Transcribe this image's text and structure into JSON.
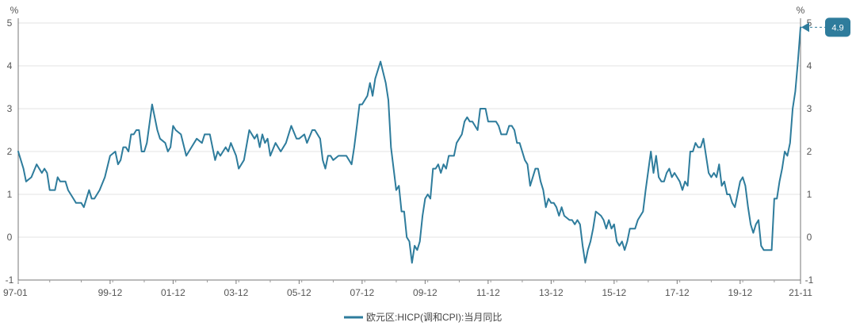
{
  "chart_data": {
    "type": "line",
    "y_unit_left": "%",
    "y_unit_right": "%",
    "ylim": [
      -1,
      5
    ],
    "y_ticks": [
      -1,
      0,
      1,
      2,
      3,
      4,
      5
    ],
    "y_tick_labels": [
      "-1",
      "0",
      "1",
      "2",
      "3",
      "4",
      "5"
    ],
    "x_tick_labels": [
      "97-01",
      "99-12",
      "01-12",
      "03-12",
      "05-12",
      "07-12",
      "09-12",
      "11-12",
      "13-12",
      "15-12",
      "17-12",
      "19-12",
      "21-11"
    ],
    "grid": "horizontal",
    "legend_position": "bottom",
    "colors": {
      "series": "#2E7C9C",
      "callout": "#2E7C9C"
    },
    "callout": {
      "label": "4.9",
      "value": 4.9
    },
    "series": [
      {
        "name": "欧元区:HICP(调和CPI):当月同比",
        "points": [
          [
            "1997-01",
            2.0
          ],
          [
            "1997-03",
            1.6
          ],
          [
            "1997-04",
            1.3
          ],
          [
            "1997-06",
            1.4
          ],
          [
            "1997-08",
            1.7
          ],
          [
            "1997-10",
            1.5
          ],
          [
            "1997-11",
            1.6
          ],
          [
            "1997-12",
            1.5
          ],
          [
            "1998-01",
            1.1
          ],
          [
            "1998-03",
            1.1
          ],
          [
            "1998-04",
            1.4
          ],
          [
            "1998-05",
            1.3
          ],
          [
            "1998-07",
            1.3
          ],
          [
            "1998-08",
            1.1
          ],
          [
            "1998-10",
            0.9
          ],
          [
            "1998-11",
            0.8
          ],
          [
            "1998-12",
            0.8
          ],
          [
            "1999-01",
            0.8
          ],
          [
            "1999-02",
            0.7
          ],
          [
            "1999-04",
            1.1
          ],
          [
            "1999-05",
            0.9
          ],
          [
            "1999-06",
            0.9
          ],
          [
            "1999-08",
            1.1
          ],
          [
            "1999-10",
            1.4
          ],
          [
            "1999-12",
            1.9
          ],
          [
            "2000-02",
            2.0
          ],
          [
            "2000-03",
            1.7
          ],
          [
            "2000-04",
            1.8
          ],
          [
            "2000-05",
            2.1
          ],
          [
            "2000-06",
            2.1
          ],
          [
            "2000-07",
            2.0
          ],
          [
            "2000-08",
            2.4
          ],
          [
            "2000-09",
            2.4
          ],
          [
            "2000-10",
            2.5
          ],
          [
            "2000-11",
            2.5
          ],
          [
            "2000-12",
            2.0
          ],
          [
            "2001-01",
            2.0
          ],
          [
            "2001-02",
            2.2
          ],
          [
            "2001-04",
            3.1
          ],
          [
            "2001-05",
            2.8
          ],
          [
            "2001-06",
            2.5
          ],
          [
            "2001-07",
            2.3
          ],
          [
            "2001-09",
            2.2
          ],
          [
            "2001-10",
            2.0
          ],
          [
            "2001-11",
            2.1
          ],
          [
            "2001-12",
            2.6
          ],
          [
            "2002-01",
            2.5
          ],
          [
            "2002-03",
            2.4
          ],
          [
            "2002-05",
            1.9
          ],
          [
            "2002-07",
            2.1
          ],
          [
            "2002-09",
            2.3
          ],
          [
            "2002-11",
            2.2
          ],
          [
            "2002-12",
            2.4
          ],
          [
            "2003-02",
            2.4
          ],
          [
            "2003-03",
            2.1
          ],
          [
            "2003-04",
            1.8
          ],
          [
            "2003-05",
            2.0
          ],
          [
            "2003-06",
            1.9
          ],
          [
            "2003-08",
            2.1
          ],
          [
            "2003-09",
            2.0
          ],
          [
            "2003-10",
            2.2
          ],
          [
            "2003-12",
            1.9
          ],
          [
            "2004-01",
            1.6
          ],
          [
            "2004-03",
            1.8
          ],
          [
            "2004-05",
            2.5
          ],
          [
            "2004-07",
            2.3
          ],
          [
            "2004-08",
            2.4
          ],
          [
            "2004-09",
            2.1
          ],
          [
            "2004-10",
            2.4
          ],
          [
            "2004-11",
            2.2
          ],
          [
            "2004-12",
            2.3
          ],
          [
            "2005-01",
            1.9
          ],
          [
            "2005-03",
            2.2
          ],
          [
            "2005-05",
            2.0
          ],
          [
            "2005-07",
            2.2
          ],
          [
            "2005-09",
            2.6
          ],
          [
            "2005-11",
            2.3
          ],
          [
            "2005-12",
            2.3
          ],
          [
            "2006-02",
            2.4
          ],
          [
            "2006-03",
            2.2
          ],
          [
            "2006-05",
            2.5
          ],
          [
            "2006-06",
            2.5
          ],
          [
            "2006-08",
            2.3
          ],
          [
            "2006-09",
            1.8
          ],
          [
            "2006-10",
            1.6
          ],
          [
            "2006-11",
            1.9
          ],
          [
            "2006-12",
            1.9
          ],
          [
            "2007-01",
            1.8
          ],
          [
            "2007-03",
            1.9
          ],
          [
            "2007-06",
            1.9
          ],
          [
            "2007-08",
            1.7
          ],
          [
            "2007-09",
            2.1
          ],
          [
            "2007-10",
            2.6
          ],
          [
            "2007-11",
            3.1
          ],
          [
            "2007-12",
            3.1
          ],
          [
            "2008-02",
            3.3
          ],
          [
            "2008-03",
            3.6
          ],
          [
            "2008-04",
            3.3
          ],
          [
            "2008-05",
            3.7
          ],
          [
            "2008-07",
            4.1
          ],
          [
            "2008-09",
            3.6
          ],
          [
            "2008-10",
            3.2
          ],
          [
            "2008-11",
            2.1
          ],
          [
            "2008-12",
            1.6
          ],
          [
            "2009-01",
            1.1
          ],
          [
            "2009-02",
            1.2
          ],
          [
            "2009-03",
            0.6
          ],
          [
            "2009-04",
            0.6
          ],
          [
            "2009-05",
            0.0
          ],
          [
            "2009-06",
            -0.1
          ],
          [
            "2009-07",
            -0.6
          ],
          [
            "2009-08",
            -0.2
          ],
          [
            "2009-09",
            -0.3
          ],
          [
            "2009-10",
            -0.1
          ],
          [
            "2009-11",
            0.5
          ],
          [
            "2009-12",
            0.9
          ],
          [
            "2010-01",
            1.0
          ],
          [
            "2010-02",
            0.9
          ],
          [
            "2010-03",
            1.6
          ],
          [
            "2010-04",
            1.6
          ],
          [
            "2010-05",
            1.7
          ],
          [
            "2010-06",
            1.5
          ],
          [
            "2010-07",
            1.7
          ],
          [
            "2010-08",
            1.6
          ],
          [
            "2010-09",
            1.9
          ],
          [
            "2010-11",
            1.9
          ],
          [
            "2010-12",
            2.2
          ],
          [
            "2011-01",
            2.3
          ],
          [
            "2011-02",
            2.4
          ],
          [
            "2011-03",
            2.7
          ],
          [
            "2011-04",
            2.8
          ],
          [
            "2011-05",
            2.7
          ],
          [
            "2011-06",
            2.7
          ],
          [
            "2011-07",
            2.6
          ],
          [
            "2011-08",
            2.5
          ],
          [
            "2011-09",
            3.0
          ],
          [
            "2011-11",
            3.0
          ],
          [
            "2011-12",
            2.7
          ],
          [
            "2012-02",
            2.7
          ],
          [
            "2012-03",
            2.7
          ],
          [
            "2012-04",
            2.6
          ],
          [
            "2012-05",
            2.4
          ],
          [
            "2012-07",
            2.4
          ],
          [
            "2012-08",
            2.6
          ],
          [
            "2012-09",
            2.6
          ],
          [
            "2012-10",
            2.5
          ],
          [
            "2012-11",
            2.2
          ],
          [
            "2012-12",
            2.2
          ],
          [
            "2013-01",
            2.0
          ],
          [
            "2013-02",
            1.8
          ],
          [
            "2013-03",
            1.7
          ],
          [
            "2013-04",
            1.2
          ],
          [
            "2013-05",
            1.4
          ],
          [
            "2013-06",
            1.6
          ],
          [
            "2013-07",
            1.6
          ],
          [
            "2013-08",
            1.3
          ],
          [
            "2013-09",
            1.1
          ],
          [
            "2013-10",
            0.7
          ],
          [
            "2013-11",
            0.9
          ],
          [
            "2013-12",
            0.8
          ],
          [
            "2014-01",
            0.8
          ],
          [
            "2014-02",
            0.7
          ],
          [
            "2014-03",
            0.5
          ],
          [
            "2014-04",
            0.7
          ],
          [
            "2014-05",
            0.5
          ],
          [
            "2014-07",
            0.4
          ],
          [
            "2014-08",
            0.4
          ],
          [
            "2014-09",
            0.3
          ],
          [
            "2014-10",
            0.4
          ],
          [
            "2014-11",
            0.3
          ],
          [
            "2014-12",
            -0.2
          ],
          [
            "2015-01",
            -0.6
          ],
          [
            "2015-02",
            -0.3
          ],
          [
            "2015-03",
            -0.1
          ],
          [
            "2015-04",
            0.2
          ],
          [
            "2015-05",
            0.6
          ],
          [
            "2015-07",
            0.5
          ],
          [
            "2015-08",
            0.4
          ],
          [
            "2015-09",
            0.2
          ],
          [
            "2015-10",
            0.4
          ],
          [
            "2015-11",
            0.2
          ],
          [
            "2015-12",
            0.3
          ],
          [
            "2016-01",
            -0.1
          ],
          [
            "2016-02",
            -0.2
          ],
          [
            "2016-03",
            -0.1
          ],
          [
            "2016-04",
            -0.3
          ],
          [
            "2016-05",
            -0.1
          ],
          [
            "2016-06",
            0.2
          ],
          [
            "2016-08",
            0.2
          ],
          [
            "2016-09",
            0.4
          ],
          [
            "2016-11",
            0.6
          ],
          [
            "2016-12",
            1.1
          ],
          [
            "2017-02",
            2.0
          ],
          [
            "2017-03",
            1.5
          ],
          [
            "2017-04",
            1.9
          ],
          [
            "2017-05",
            1.4
          ],
          [
            "2017-06",
            1.3
          ],
          [
            "2017-07",
            1.3
          ],
          [
            "2017-08",
            1.5
          ],
          [
            "2017-09",
            1.6
          ],
          [
            "2017-10",
            1.4
          ],
          [
            "2017-11",
            1.5
          ],
          [
            "2017-12",
            1.4
          ],
          [
            "2018-01",
            1.3
          ],
          [
            "2018-02",
            1.1
          ],
          [
            "2018-03",
            1.3
          ],
          [
            "2018-04",
            1.2
          ],
          [
            "2018-05",
            2.0
          ],
          [
            "2018-06",
            2.0
          ],
          [
            "2018-07",
            2.2
          ],
          [
            "2018-08",
            2.1
          ],
          [
            "2018-09",
            2.1
          ],
          [
            "2018-10",
            2.3
          ],
          [
            "2018-11",
            1.9
          ],
          [
            "2018-12",
            1.5
          ],
          [
            "2019-01",
            1.4
          ],
          [
            "2019-02",
            1.5
          ],
          [
            "2019-03",
            1.4
          ],
          [
            "2019-04",
            1.7
          ],
          [
            "2019-05",
            1.2
          ],
          [
            "2019-06",
            1.3
          ],
          [
            "2019-07",
            1.0
          ],
          [
            "2019-08",
            1.0
          ],
          [
            "2019-09",
            0.8
          ],
          [
            "2019-10",
            0.7
          ],
          [
            "2019-11",
            1.0
          ],
          [
            "2019-12",
            1.3
          ],
          [
            "2020-01",
            1.4
          ],
          [
            "2020-02",
            1.2
          ],
          [
            "2020-03",
            0.7
          ],
          [
            "2020-04",
            0.3
          ],
          [
            "2020-05",
            0.1
          ],
          [
            "2020-06",
            0.3
          ],
          [
            "2020-07",
            0.4
          ],
          [
            "2020-08",
            -0.2
          ],
          [
            "2020-09",
            -0.3
          ],
          [
            "2020-10",
            -0.3
          ],
          [
            "2020-11",
            -0.3
          ],
          [
            "2020-12",
            -0.3
          ],
          [
            "2021-01",
            0.9
          ],
          [
            "2021-02",
            0.9
          ],
          [
            "2021-03",
            1.3
          ],
          [
            "2021-04",
            1.6
          ],
          [
            "2021-05",
            2.0
          ],
          [
            "2021-06",
            1.9
          ],
          [
            "2021-07",
            2.2
          ],
          [
            "2021-08",
            3.0
          ],
          [
            "2021-09",
            3.4
          ],
          [
            "2021-10",
            4.1
          ],
          [
            "2021-11",
            4.9
          ]
        ]
      }
    ]
  }
}
